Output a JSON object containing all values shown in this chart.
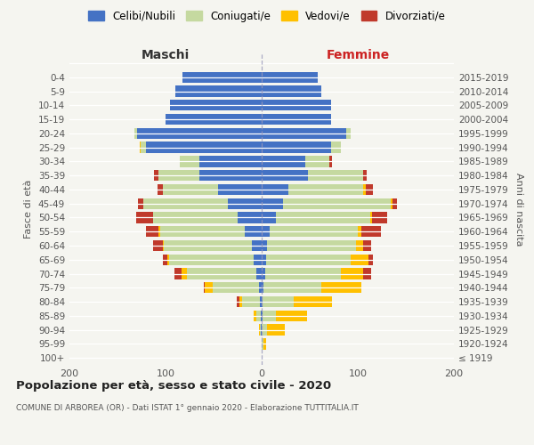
{
  "age_groups": [
    "100+",
    "95-99",
    "90-94",
    "85-89",
    "80-84",
    "75-79",
    "70-74",
    "65-69",
    "60-64",
    "55-59",
    "50-54",
    "45-49",
    "40-44",
    "35-39",
    "30-34",
    "25-29",
    "20-24",
    "15-19",
    "10-14",
    "5-9",
    "0-4"
  ],
  "birth_years": [
    "≤ 1919",
    "1920-1924",
    "1925-1929",
    "1930-1934",
    "1935-1939",
    "1940-1944",
    "1945-1949",
    "1950-1954",
    "1955-1959",
    "1960-1964",
    "1965-1969",
    "1970-1974",
    "1975-1979",
    "1980-1984",
    "1985-1989",
    "1990-1994",
    "1995-1999",
    "2000-2004",
    "2005-2009",
    "2010-2014",
    "2015-2019"
  ],
  "maschi": {
    "celibi": [
      0,
      0,
      1,
      1,
      2,
      3,
      6,
      8,
      10,
      18,
      25,
      35,
      45,
      65,
      65,
      120,
      130,
      100,
      95,
      90,
      82
    ],
    "coniugati": [
      0,
      0,
      1,
      5,
      18,
      48,
      72,
      88,
      92,
      88,
      88,
      88,
      58,
      42,
      20,
      6,
      2,
      0,
      0,
      0,
      0
    ],
    "vedovi": [
      0,
      0,
      1,
      2,
      3,
      8,
      5,
      2,
      1,
      1,
      0,
      0,
      0,
      0,
      0,
      1,
      0,
      0,
      0,
      0,
      0
    ],
    "divorziati": [
      0,
      0,
      0,
      0,
      3,
      1,
      8,
      5,
      10,
      13,
      18,
      6,
      5,
      5,
      0,
      0,
      0,
      0,
      0,
      0,
      0
    ]
  },
  "femmine": {
    "nubili": [
      0,
      0,
      0,
      1,
      1,
      2,
      4,
      5,
      6,
      8,
      15,
      22,
      28,
      48,
      45,
      72,
      88,
      72,
      72,
      62,
      58
    ],
    "coniugate": [
      0,
      2,
      6,
      14,
      32,
      60,
      78,
      88,
      92,
      92,
      98,
      112,
      78,
      58,
      25,
      10,
      5,
      0,
      0,
      0,
      0
    ],
    "vedove": [
      0,
      3,
      18,
      32,
      40,
      42,
      24,
      18,
      8,
      4,
      2,
      2,
      2,
      0,
      0,
      0,
      0,
      0,
      0,
      0,
      0
    ],
    "divorziate": [
      0,
      0,
      0,
      0,
      0,
      0,
      8,
      5,
      8,
      20,
      16,
      5,
      8,
      3,
      3,
      0,
      0,
      0,
      0,
      0,
      0
    ]
  },
  "colors": {
    "celibi": "#4472c4",
    "coniugati": "#c5d9a0",
    "vedovi": "#ffc000",
    "divorziati": "#c0392b"
  },
  "xlim": 200,
  "title": "Popolazione per età, sesso e stato civile - 2020",
  "subtitle": "COMUNE DI ARBOREA (OR) - Dati ISTAT 1° gennaio 2020 - Elaborazione TUTTITALIA.IT",
  "ylabel_left": "Fasce di età",
  "ylabel_right": "Anni di nascita",
  "xlabel_maschi": "Maschi",
  "xlabel_femmine": "Femmine",
  "legend_labels": [
    "Celibi/Nubili",
    "Coniugati/e",
    "Vedovi/e",
    "Divorziati/e"
  ],
  "bg_color": "#f5f5f0"
}
